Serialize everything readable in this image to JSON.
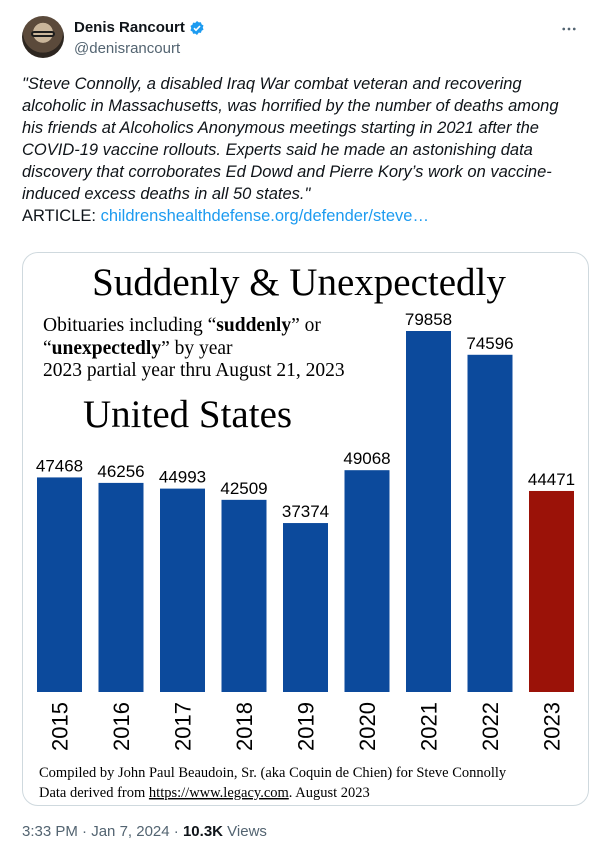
{
  "tweet": {
    "author_name": "Denis Rancourt",
    "author_handle": "@denisrancourt",
    "text_quote": "\"Steve Connolly, a disabled Iraq War combat veteran and recovering alcoholic in Massachusetts, was horrified by the number of deaths among his friends at Alcoholics Anonymous meetings starting in 2021 after the COVID-19 vaccine rollouts. Experts said he made an astonishing data discovery that corroborates Ed Dowd and Pierre Kory’s work on vaccine-induced excess deaths in all 50 states.\"",
    "article_prefix": "ARTICLE: ",
    "article_link": "childrenshealthdefense.org/defender/steve…",
    "time": "3:33 PM",
    "separator": " · ",
    "date": "Jan 7, 2024",
    "views_count": "10.3K",
    "views_label": " Views"
  },
  "icons": {
    "verified": "verified-badge-icon",
    "more": "more-dots-icon"
  },
  "colors": {
    "bar_default": "#0c4a9c",
    "bar_highlight": "#9b1208",
    "link": "#1d9bf0"
  },
  "chart_data": {
    "type": "bar",
    "title": "Suddenly & Unexpectedly",
    "subtitle_lines": {
      "line1_prefix": "Obituaries including “",
      "line1_bold": "suddenly",
      "line1_suffix": "” or",
      "line2_prefix": "“",
      "line2_bold": "unexpectedly",
      "line2_suffix": "” by year",
      "line3": "2023 partial year thru August 21, 2023"
    },
    "region_label": "United States",
    "categories": [
      "2015",
      "2016",
      "2017",
      "2018",
      "2019",
      "2020",
      "2021",
      "2022",
      "2023"
    ],
    "values": [
      47468,
      46256,
      44993,
      42509,
      37374,
      49068,
      79858,
      74596,
      44471
    ],
    "value_labels": [
      "47468",
      "46256",
      "44993",
      "42509",
      "37374",
      "49068",
      "79858",
      "74596",
      "44471"
    ],
    "highlight_category": "2023",
    "footer": {
      "line1": "Compiled by John Paul Beaudoin, Sr. (aka Coquin de Chien) for Steve Connolly",
      "line2_prefix": "Data derived from ",
      "line2_link": "https://www.legacy.com",
      "line2_suffix": ". August 2023"
    }
  }
}
